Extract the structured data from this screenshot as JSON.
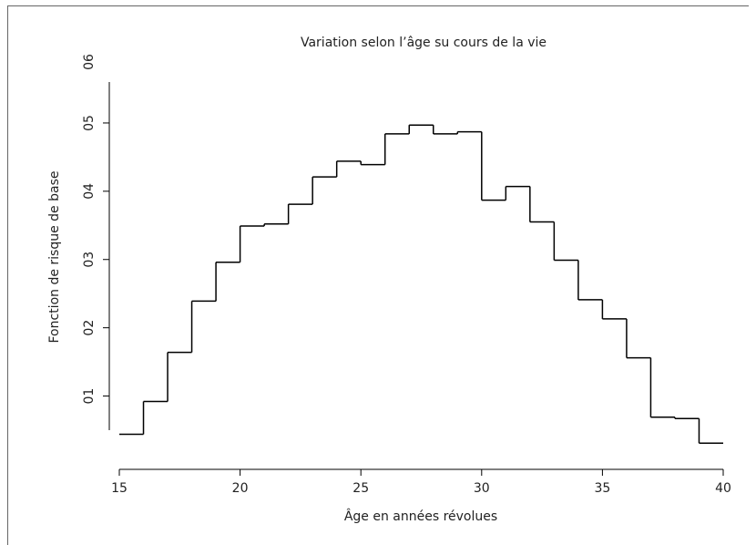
{
  "chart_data": {
    "type": "histogram",
    "title": "Variation selon l’âge su cours de la vie",
    "xlabel": "Âge en années révolues",
    "ylabel": "Fonction de risque de base",
    "bins": [
      15,
      16,
      17,
      18,
      19,
      20,
      21,
      22,
      23,
      24,
      25,
      26,
      27,
      28,
      29,
      30,
      31,
      32,
      33,
      34,
      35,
      36,
      37,
      38,
      39,
      40
    ],
    "values": [
      0.44,
      0.92,
      1.64,
      2.39,
      2.96,
      3.49,
      3.52,
      3.81,
      4.21,
      4.44,
      4.39,
      4.84,
      4.97,
      4.84,
      4.87,
      3.87,
      4.07,
      3.55,
      2.99,
      2.41,
      2.13,
      1.56,
      0.69,
      0.67,
      0.31
    ],
    "color": "#000000",
    "xlim": [
      15,
      40
    ],
    "xticks": [
      15,
      20,
      25,
      30,
      35,
      40
    ],
    "ylim": [
      0.5,
      5.6
    ],
    "yticks": [
      {
        "value": 1,
        "label": "01"
      },
      {
        "value": 2,
        "label": "02"
      },
      {
        "value": 3,
        "label": "03"
      },
      {
        "value": 4,
        "label": "04"
      },
      {
        "value": 5,
        "label": "05"
      },
      {
        "value": 6,
        "label": "06"
      }
    ]
  }
}
